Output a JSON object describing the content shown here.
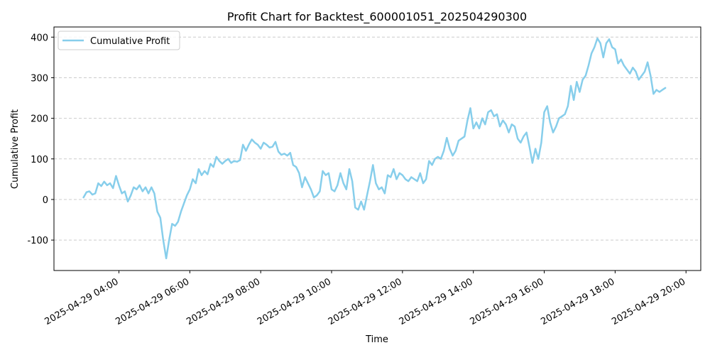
{
  "chart_data": {
    "type": "line",
    "title": "Profit Chart for Backtest_600001051_202504290300",
    "xlabel": "Time",
    "ylabel": "Cumulative Profit",
    "xlim": [
      "2025-04-29 02:10",
      "2025-04-29 20:25"
    ],
    "ylim": [
      -175,
      425
    ],
    "x_ticks": [
      "2025-04-29 04:00",
      "2025-04-29 06:00",
      "2025-04-29 08:00",
      "2025-04-29 10:00",
      "2025-04-29 12:00",
      "2025-04-29 14:00",
      "2025-04-29 16:00",
      "2025-04-29 18:00",
      "2025-04-29 20:00"
    ],
    "y_ticks": [
      -100,
      0,
      100,
      200,
      300,
      400
    ],
    "grid": "horizontal dashed",
    "legend": "top-left",
    "series": [
      {
        "name": "Cumulative Profit",
        "color": "#87ceeb",
        "points": [
          [
            "2025-04-29 03:00",
            5
          ],
          [
            "2025-04-29 03:05",
            18
          ],
          [
            "2025-04-29 03:10",
            20
          ],
          [
            "2025-04-29 03:15",
            12
          ],
          [
            "2025-04-29 03:20",
            15
          ],
          [
            "2025-04-29 03:25",
            40
          ],
          [
            "2025-04-29 03:30",
            33
          ],
          [
            "2025-04-29 03:35",
            44
          ],
          [
            "2025-04-29 03:40",
            35
          ],
          [
            "2025-04-29 03:45",
            40
          ],
          [
            "2025-04-29 03:50",
            28
          ],
          [
            "2025-04-29 03:55",
            58
          ],
          [
            "2025-04-29 04:00",
            35
          ],
          [
            "2025-04-29 04:05",
            15
          ],
          [
            "2025-04-29 04:10",
            20
          ],
          [
            "2025-04-29 04:15",
            -5
          ],
          [
            "2025-04-29 04:20",
            10
          ],
          [
            "2025-04-29 04:25",
            30
          ],
          [
            "2025-04-29 04:30",
            25
          ],
          [
            "2025-04-29 04:35",
            35
          ],
          [
            "2025-04-29 04:40",
            20
          ],
          [
            "2025-04-29 04:45",
            30
          ],
          [
            "2025-04-29 04:50",
            15
          ],
          [
            "2025-04-29 04:55",
            30
          ],
          [
            "2025-04-29 05:00",
            15
          ],
          [
            "2025-04-29 05:05",
            -30
          ],
          [
            "2025-04-29 05:10",
            -45
          ],
          [
            "2025-04-29 05:15",
            -100
          ],
          [
            "2025-04-29 05:20",
            -145
          ],
          [
            "2025-04-29 05:25",
            -100
          ],
          [
            "2025-04-29 05:30",
            -60
          ],
          [
            "2025-04-29 05:35",
            -65
          ],
          [
            "2025-04-29 05:40",
            -55
          ],
          [
            "2025-04-29 05:45",
            -30
          ],
          [
            "2025-04-29 05:50",
            -10
          ],
          [
            "2025-04-29 05:55",
            10
          ],
          [
            "2025-04-29 06:00",
            25
          ],
          [
            "2025-04-29 06:05",
            50
          ],
          [
            "2025-04-29 06:10",
            40
          ],
          [
            "2025-04-29 06:15",
            75
          ],
          [
            "2025-04-29 06:20",
            60
          ],
          [
            "2025-04-29 06:25",
            70
          ],
          [
            "2025-04-29 06:30",
            62
          ],
          [
            "2025-04-29 06:35",
            88
          ],
          [
            "2025-04-29 06:40",
            80
          ],
          [
            "2025-04-29 06:45",
            105
          ],
          [
            "2025-04-29 06:50",
            95
          ],
          [
            "2025-04-29 06:55",
            88
          ],
          [
            "2025-04-29 07:00",
            95
          ],
          [
            "2025-04-29 07:05",
            100
          ],
          [
            "2025-04-29 07:10",
            90
          ],
          [
            "2025-04-29 07:15",
            95
          ],
          [
            "2025-04-29 07:20",
            93
          ],
          [
            "2025-04-29 07:25",
            97
          ],
          [
            "2025-04-29 07:30",
            135
          ],
          [
            "2025-04-29 07:35",
            120
          ],
          [
            "2025-04-29 07:40",
            135
          ],
          [
            "2025-04-29 07:45",
            148
          ],
          [
            "2025-04-29 07:50",
            140
          ],
          [
            "2025-04-29 07:55",
            135
          ],
          [
            "2025-04-29 08:00",
            125
          ],
          [
            "2025-04-29 08:05",
            140
          ],
          [
            "2025-04-29 08:10",
            135
          ],
          [
            "2025-04-29 08:15",
            128
          ],
          [
            "2025-04-29 08:20",
            130
          ],
          [
            "2025-04-29 08:25",
            142
          ],
          [
            "2025-04-29 08:30",
            118
          ],
          [
            "2025-04-29 08:35",
            110
          ],
          [
            "2025-04-29 08:40",
            113
          ],
          [
            "2025-04-29 08:45",
            108
          ],
          [
            "2025-04-29 08:50",
            115
          ],
          [
            "2025-04-29 08:55",
            85
          ],
          [
            "2025-04-29 09:00",
            80
          ],
          [
            "2025-04-29 09:05",
            65
          ],
          [
            "2025-04-29 09:10",
            30
          ],
          [
            "2025-04-29 09:15",
            55
          ],
          [
            "2025-04-29 09:20",
            40
          ],
          [
            "2025-04-29 09:25",
            25
          ],
          [
            "2025-04-29 09:30",
            5
          ],
          [
            "2025-04-29 09:35",
            10
          ],
          [
            "2025-04-29 09:40",
            20
          ],
          [
            "2025-04-29 09:45",
            70
          ],
          [
            "2025-04-29 09:50",
            60
          ],
          [
            "2025-04-29 09:55",
            65
          ],
          [
            "2025-04-29 10:00",
            25
          ],
          [
            "2025-04-29 10:05",
            20
          ],
          [
            "2025-04-29 10:10",
            35
          ],
          [
            "2025-04-29 10:15",
            65
          ],
          [
            "2025-04-29 10:20",
            40
          ],
          [
            "2025-04-29 10:25",
            25
          ],
          [
            "2025-04-29 10:30",
            75
          ],
          [
            "2025-04-29 10:35",
            45
          ],
          [
            "2025-04-29 10:40",
            -20
          ],
          [
            "2025-04-29 10:45",
            -25
          ],
          [
            "2025-04-29 10:50",
            -5
          ],
          [
            "2025-04-29 10:55",
            -25
          ],
          [
            "2025-04-29 11:00",
            10
          ],
          [
            "2025-04-29 11:05",
            45
          ],
          [
            "2025-04-29 11:10",
            85
          ],
          [
            "2025-04-29 11:15",
            40
          ],
          [
            "2025-04-29 11:20",
            25
          ],
          [
            "2025-04-29 11:25",
            30
          ],
          [
            "2025-04-29 11:30",
            15
          ],
          [
            "2025-04-29 11:35",
            60
          ],
          [
            "2025-04-29 11:40",
            55
          ],
          [
            "2025-04-29 11:45",
            75
          ],
          [
            "2025-04-29 11:50",
            50
          ],
          [
            "2025-04-29 11:55",
            65
          ],
          [
            "2025-04-29 12:00",
            60
          ],
          [
            "2025-04-29 12:05",
            50
          ],
          [
            "2025-04-29 12:10",
            45
          ],
          [
            "2025-04-29 12:15",
            55
          ],
          [
            "2025-04-29 12:20",
            50
          ],
          [
            "2025-04-29 12:25",
            45
          ],
          [
            "2025-04-29 12:30",
            65
          ],
          [
            "2025-04-29 12:35",
            40
          ],
          [
            "2025-04-29 12:40",
            50
          ],
          [
            "2025-04-29 12:45",
            95
          ],
          [
            "2025-04-29 12:50",
            85
          ],
          [
            "2025-04-29 12:55",
            100
          ],
          [
            "2025-04-29 13:00",
            105
          ],
          [
            "2025-04-29 13:05",
            100
          ],
          [
            "2025-04-29 13:10",
            120
          ],
          [
            "2025-04-29 13:15",
            152
          ],
          [
            "2025-04-29 13:20",
            125
          ],
          [
            "2025-04-29 13:25",
            108
          ],
          [
            "2025-04-29 13:30",
            120
          ],
          [
            "2025-04-29 13:35",
            145
          ],
          [
            "2025-04-29 13:40",
            150
          ],
          [
            "2025-04-29 13:45",
            155
          ],
          [
            "2025-04-29 13:50",
            195
          ],
          [
            "2025-04-29 13:55",
            225
          ],
          [
            "2025-04-29 14:00",
            175
          ],
          [
            "2025-04-29 14:05",
            190
          ],
          [
            "2025-04-29 14:10",
            175
          ],
          [
            "2025-04-29 14:15",
            200
          ],
          [
            "2025-04-29 14:20",
            185
          ],
          [
            "2025-04-29 14:25",
            215
          ],
          [
            "2025-04-29 14:30",
            220
          ],
          [
            "2025-04-29 14:35",
            205
          ],
          [
            "2025-04-29 14:40",
            210
          ],
          [
            "2025-04-29 14:45",
            180
          ],
          [
            "2025-04-29 14:50",
            195
          ],
          [
            "2025-04-29 14:55",
            185
          ],
          [
            "2025-04-29 15:00",
            165
          ],
          [
            "2025-04-29 15:05",
            185
          ],
          [
            "2025-04-29 15:10",
            180
          ],
          [
            "2025-04-29 15:15",
            150
          ],
          [
            "2025-04-29 15:20",
            140
          ],
          [
            "2025-04-29 15:25",
            155
          ],
          [
            "2025-04-29 15:30",
            165
          ],
          [
            "2025-04-29 15:35",
            130
          ],
          [
            "2025-04-29 15:40",
            90
          ],
          [
            "2025-04-29 15:45",
            125
          ],
          [
            "2025-04-29 15:50",
            100
          ],
          [
            "2025-04-29 15:55",
            140
          ],
          [
            "2025-04-29 16:00",
            215
          ],
          [
            "2025-04-29 16:05",
            230
          ],
          [
            "2025-04-29 16:10",
            190
          ],
          [
            "2025-04-29 16:15",
            165
          ],
          [
            "2025-04-29 16:20",
            180
          ],
          [
            "2025-04-29 16:25",
            200
          ],
          [
            "2025-04-29 16:30",
            205
          ],
          [
            "2025-04-29 16:35",
            210
          ],
          [
            "2025-04-29 16:40",
            230
          ],
          [
            "2025-04-29 16:45",
            280
          ],
          [
            "2025-04-29 16:50",
            245
          ],
          [
            "2025-04-29 16:55",
            290
          ],
          [
            "2025-04-29 17:00",
            265
          ],
          [
            "2025-04-29 17:05",
            295
          ],
          [
            "2025-04-29 17:10",
            305
          ],
          [
            "2025-04-29 17:15",
            330
          ],
          [
            "2025-04-29 17:20",
            360
          ],
          [
            "2025-04-29 17:25",
            375
          ],
          [
            "2025-04-29 17:30",
            397
          ],
          [
            "2025-04-29 17:35",
            385
          ],
          [
            "2025-04-29 17:40",
            350
          ],
          [
            "2025-04-29 17:45",
            385
          ],
          [
            "2025-04-29 17:50",
            395
          ],
          [
            "2025-04-29 17:55",
            375
          ],
          [
            "2025-04-29 18:00",
            370
          ],
          [
            "2025-04-29 18:05",
            335
          ],
          [
            "2025-04-29 18:10",
            345
          ],
          [
            "2025-04-29 18:15",
            330
          ],
          [
            "2025-04-29 18:20",
            320
          ],
          [
            "2025-04-29 18:25",
            310
          ],
          [
            "2025-04-29 18:30",
            325
          ],
          [
            "2025-04-29 18:35",
            315
          ],
          [
            "2025-04-29 18:40",
            295
          ],
          [
            "2025-04-29 18:45",
            305
          ],
          [
            "2025-04-29 18:50",
            315
          ],
          [
            "2025-04-29 18:55",
            338
          ],
          [
            "2025-04-29 19:00",
            305
          ],
          [
            "2025-04-29 19:05",
            260
          ],
          [
            "2025-04-29 19:10",
            270
          ],
          [
            "2025-04-29 19:15",
            265
          ],
          [
            "2025-04-29 19:20",
            270
          ],
          [
            "2025-04-29 19:25",
            275
          ]
        ]
      }
    ]
  }
}
